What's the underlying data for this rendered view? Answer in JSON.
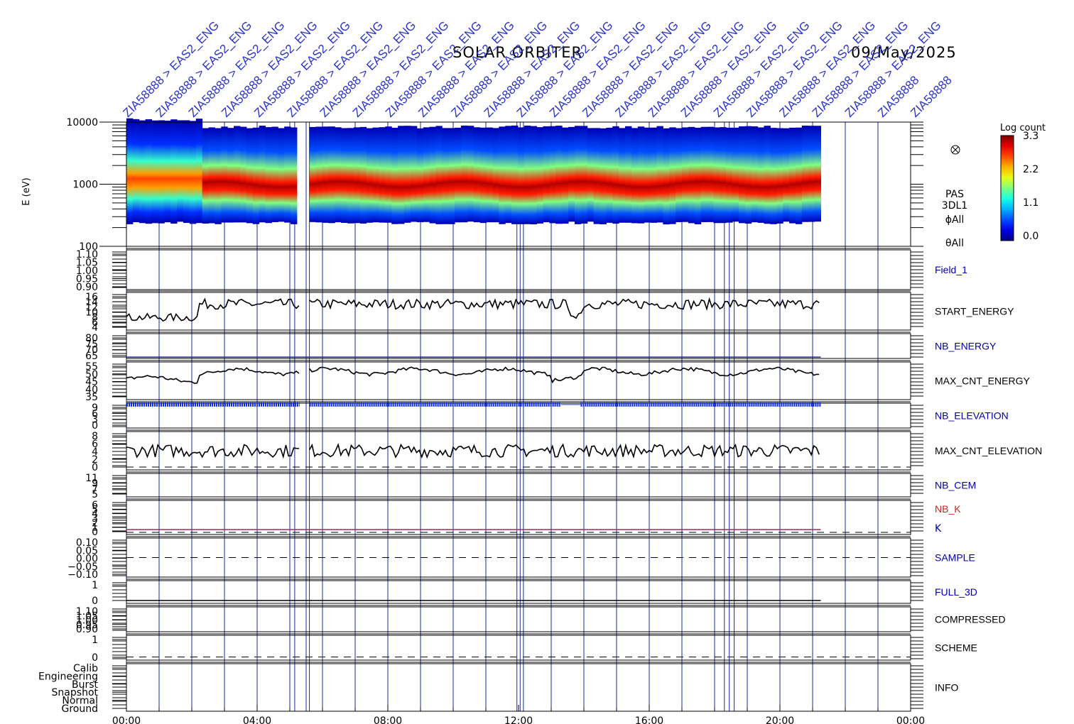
{
  "header": {
    "mission": "SOLAR ORBITER",
    "date": "09/May/2025"
  },
  "mode_labels": [
    "ZIA58888 > EAS2_ENG",
    "ZIA58888 > EAS2_ENG",
    "ZIA58888 > EAS2_ENG",
    "ZIA58888 > EAS2_ENG",
    "ZIA58888 > EAS2_ENG",
    "ZIA58888 > EAS2_ENG",
    "ZIA58888 > EAS2_ENG",
    "ZIA58888 > EAS2_ENG",
    "ZIA58888 > EAS2_ENG",
    "ZIA58888 > EAS2_ENG",
    "ZIA58888 > EAS2_ENG",
    "ZIA58888 > EAS2_ENG",
    "ZIA58888 > EAS2_ENG",
    "ZIA58888 > EAS2_ENG",
    "ZIA58888 > EAS2_ENG",
    "ZIA58888 > EAS2_ENG",
    "ZIA58888 > EAS2_ENG",
    "ZIA58888 > EAS2_ENG",
    "ZIA58888 > EAS2_ENG",
    "ZIA58888 > EAS2_ENG",
    "ZIA58888 > EAS2_ENG",
    "ZIA58888 > EAS2_ENG",
    "ZIA58888 > EAS2_ENG",
    "ZIA58888",
    "ZIA58888"
  ],
  "chart_data": {
    "type": "heatmap",
    "x_axis": {
      "range_hours": [
        0,
        24
      ],
      "tick_labels": [
        "00:00",
        "04:00",
        "08:00",
        "12:00",
        "16:00",
        "20:00",
        "00:00"
      ],
      "major_tick_hours": [
        0,
        4,
        8,
        12,
        16,
        20,
        24
      ]
    },
    "data_span_hours": [
      0,
      21.25
    ],
    "gap_hours": [
      5.3,
      5.6
    ],
    "vertical_lines_hours": [
      0,
      1,
      2,
      3,
      4,
      5,
      5.15,
      5.5,
      5.6,
      6,
      7,
      8,
      9,
      10,
      11,
      11.95,
      12.05,
      12.15,
      13,
      14,
      15,
      16,
      17,
      18,
      18.3,
      18.45,
      18.6,
      19,
      20,
      21,
      22,
      23
    ],
    "spectrogram": {
      "ylabel": "E (eV)",
      "y_scale": "log",
      "ylim": [
        100,
        10000
      ],
      "y_tick_labels": [
        "100",
        "1000",
        "10000"
      ],
      "colorbar": {
        "title": "Log count",
        "range": [
          0.0,
          3.3
        ],
        "tick_labels": [
          "3.3",
          "2.2",
          "1.1",
          "0.0"
        ]
      },
      "side_labels": [
        "PAS",
        "3DL1",
        "ϕAll",
        "θAll"
      ],
      "side_icon": "cross-circle-icon",
      "peak_energy_eV": 1000
    },
    "panels": [
      {
        "name": "Field_1",
        "label_color": "#0000aa",
        "y_tick_labels": [
          "1.10",
          "1.05",
          "1.00",
          "0.95",
          "0.90"
        ],
        "ylim": [
          0.9,
          1.1
        ],
        "trace": "none"
      },
      {
        "name": "START_ENERGY",
        "label_color": "#000000",
        "y_tick_labels": [
          "16",
          "14",
          "12",
          "10",
          "8",
          "6",
          "4"
        ],
        "ylim": [
          4,
          16
        ],
        "trace": "start_energy"
      },
      {
        "name": "NB_ENERGY",
        "label_color": "#0000aa",
        "y_tick_labels": [
          "80",
          "75",
          "70",
          "65"
        ],
        "ylim": [
          63,
          82
        ],
        "trace": "flat",
        "value": 64
      },
      {
        "name": "MAX_CNT_ENERGY",
        "label_color": "#000000",
        "y_tick_labels": [
          "55",
          "50",
          "45",
          "40",
          "35"
        ],
        "ylim": [
          33,
          57
        ],
        "trace": "max_cnt_energy"
      },
      {
        "name": "NB_ELEVATION",
        "label_color": "#0000aa",
        "y_tick_labels": [
          "9",
          "6",
          "3",
          "0"
        ],
        "ylim": [
          0,
          9.5
        ],
        "trace": "nb_elevation",
        "value": 9
      },
      {
        "name": "MAX_CNT_ELEVATION",
        "label_color": "#000000",
        "y_tick_labels": [
          "8",
          "6",
          "4",
          "2",
          "0"
        ],
        "ylim": [
          0,
          9
        ],
        "trace": "max_cnt_elevation"
      },
      {
        "name": "NB_CEM",
        "label_color": "#0000aa",
        "y_tick_labels": [
          "11",
          "9",
          "7",
          "5"
        ],
        "ylim": [
          4,
          12
        ],
        "trace": "none"
      },
      {
        "name": "NB_K",
        "label_color": "#cc2222",
        "second_name": "K",
        "second_color": "#0000aa",
        "y_tick_labels": [
          "6",
          "5",
          "4",
          "3",
          "2",
          "1",
          "0"
        ],
        "ylim": [
          0,
          7
        ],
        "trace": "flat",
        "value": 1
      },
      {
        "name": "SAMPLE",
        "label_color": "#0000aa",
        "y_tick_labels": [
          "0.10",
          "0.05",
          "0.00",
          "−0.05",
          "−0.10"
        ],
        "ylim": [
          -0.12,
          0.12
        ],
        "trace": "dashed_zero"
      },
      {
        "name": "FULL_3D",
        "label_color": "#0000aa",
        "y_tick_labels": [
          "1",
          "0"
        ],
        "ylim": [
          -0.2,
          1.4
        ],
        "trace": "flat",
        "value": 0
      },
      {
        "name": "COMPRESSED",
        "label_color": "#000000",
        "y_tick_labels": [
          "1.10",
          "1.05",
          "1.00",
          "0.95",
          "0.90"
        ],
        "ylim": [
          0.88,
          1.12
        ],
        "trace": "none"
      },
      {
        "name": "SCHEME",
        "label_color": "#000000",
        "y_tick_labels": [
          "1",
          "0"
        ],
        "ylim": [
          -0.2,
          1.4
        ],
        "trace": "dashed_zero"
      },
      {
        "name": "INFO",
        "label_color": "#000000",
        "y_tick_labels": [
          "Calib",
          "Engineering",
          "Burst",
          "Snapshot",
          "Normal",
          "Ground"
        ],
        "trace": "none"
      }
    ]
  },
  "colors": {
    "axis": "#000000",
    "vline": "#1a2a9a",
    "label_blue": "#0000aa",
    "mode_text": "#2b34c4",
    "nb_elevation": "#1030e0",
    "nb_k_line": "#aa2266"
  }
}
